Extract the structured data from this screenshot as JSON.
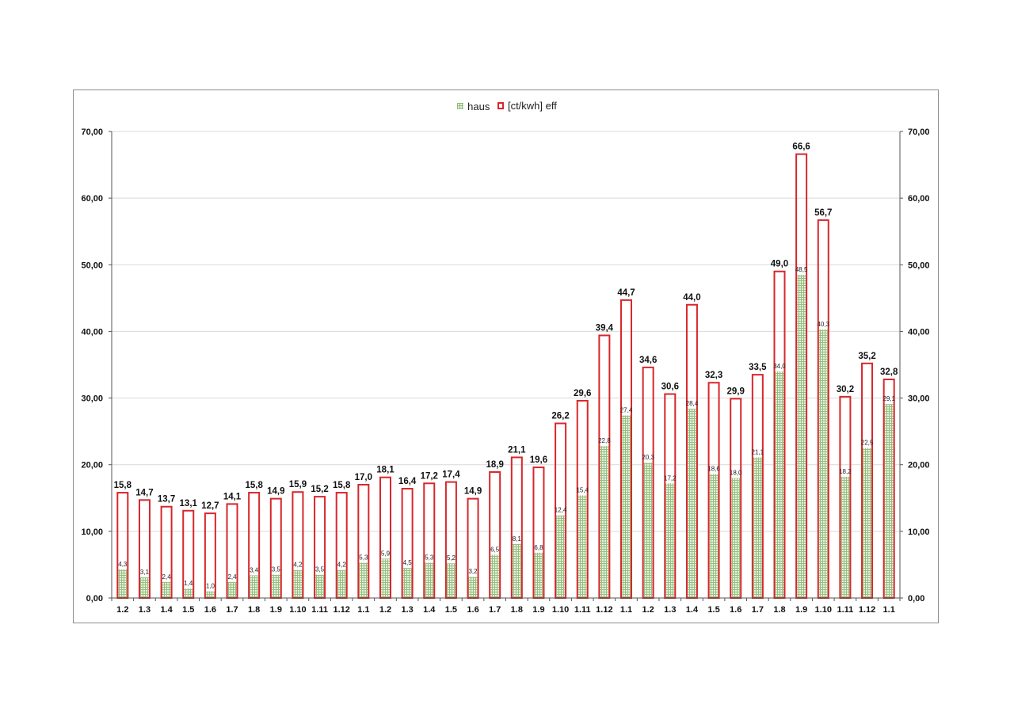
{
  "chart_data": {
    "type": "bar",
    "title": "",
    "xlabel": "",
    "ylabel": "",
    "ylim": [
      0,
      70
    ],
    "y_ticks": [
      "0,00",
      "10,00",
      "20,00",
      "30,00",
      "40,00",
      "50,00",
      "60,00",
      "70,00"
    ],
    "y2_ticks": [
      "0,00",
      "10,00",
      "20,00",
      "30,00",
      "40,00",
      "50,00",
      "60,00",
      "70,00"
    ],
    "grid": true,
    "legend_position": "top-center",
    "categories": [
      "1.2",
      "1.3",
      "1.4",
      "1.5",
      "1.6",
      "1.7",
      "1.8",
      "1.9",
      "1.10",
      "1.11",
      "1.12",
      "1.1",
      "1.2",
      "1.3",
      "1.4",
      "1.5",
      "1.6",
      "1.7",
      "1.8",
      "1.9",
      "1.10",
      "1.11",
      "1.12",
      "1.1",
      "1.2",
      "1.3",
      "1.4",
      "1.5",
      "1.6",
      "1.7",
      "1.8",
      "1.9",
      "1.10",
      "1.11",
      "1.12",
      "1.1"
    ],
    "series": [
      {
        "name": "haus",
        "color": "#8fbf7a",
        "values": [
          4.3,
          3.1,
          2.4,
          1.4,
          1.0,
          2.4,
          3.4,
          3.5,
          4.2,
          3.5,
          4.2,
          5.3,
          5.9,
          4.5,
          5.3,
          5.2,
          3.2,
          6.5,
          8.1,
          6.8,
          12.4,
          15.4,
          22.8,
          27.4,
          20.3,
          17.2,
          28.4,
          18.6,
          18.0,
          21.1,
          34.0,
          48.5,
          40.3,
          18.2,
          22.5,
          29.1
        ],
        "labels": [
          "4,3",
          "3,1",
          "2,4",
          "1,4",
          "1,0",
          "2,4",
          "3,4",
          "3,5",
          "4,2",
          "3,5",
          "4,2",
          "5,3",
          "5,9",
          "4,5",
          "5,3",
          "5,2",
          "3,2",
          "6,5",
          "8,1",
          "6,8",
          "12,4",
          "15,4",
          "22,8",
          "27,4",
          "20,3",
          "17,2",
          "28,4",
          "18,6",
          "18,0",
          "21,1",
          "34,0",
          "48,5",
          "40,3",
          "18,2",
          "22,5",
          "29,1"
        ]
      },
      {
        "name": "[ct/kwh] eff",
        "color": "#d9262b",
        "values": [
          15.8,
          14.7,
          13.7,
          13.1,
          12.7,
          14.1,
          15.8,
          14.9,
          15.9,
          15.2,
          15.8,
          17.0,
          18.1,
          16.4,
          17.2,
          17.4,
          14.9,
          18.9,
          21.1,
          19.6,
          26.2,
          29.6,
          39.4,
          44.7,
          34.6,
          30.6,
          44.0,
          32.3,
          29.9,
          33.5,
          49.0,
          66.6,
          56.7,
          30.2,
          35.2,
          32.8
        ],
        "labels": [
          "15,8",
          "14,7",
          "13,7",
          "13,1",
          "12,7",
          "14,1",
          "15,8",
          "14,9",
          "15,9",
          "15,2",
          "15,8",
          "17,0",
          "18,1",
          "16,4",
          "17,2",
          "17,4",
          "14,9",
          "18,9",
          "21,1",
          "19,6",
          "26,2",
          "29,6",
          "39,4",
          "44,7",
          "34,6",
          "30,6",
          "44,0",
          "32,3",
          "29,9",
          "33,5",
          "49,0",
          "66,6",
          "56,7",
          "30,2",
          "35,2",
          "32,8"
        ]
      }
    ]
  }
}
